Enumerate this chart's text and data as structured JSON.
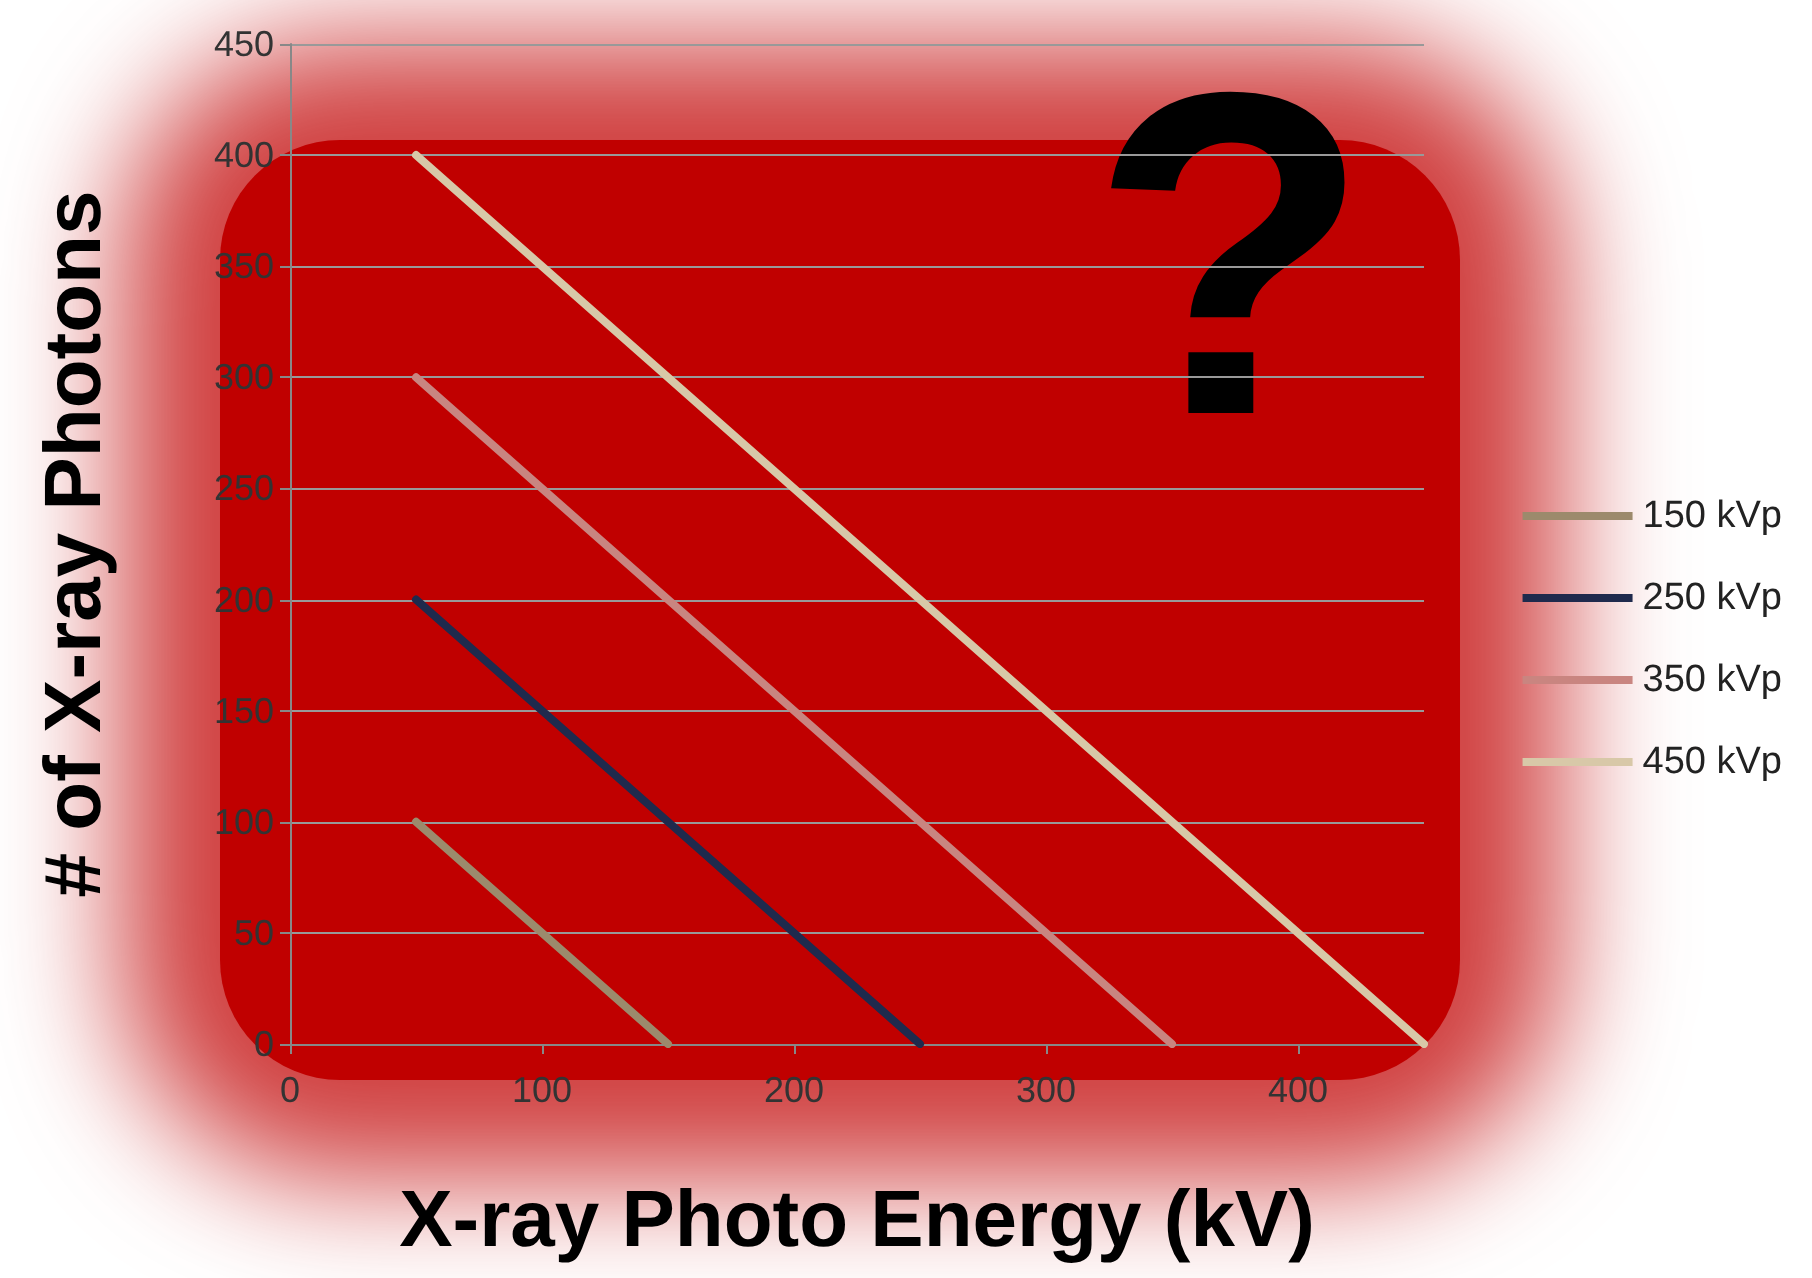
{
  "chart_data": {
    "type": "line",
    "xlabel": "X-ray Photo Energy (kV)",
    "ylabel": "# of X-ray Photons",
    "annotations": [
      "?"
    ],
    "xlim": [
      0,
      450
    ],
    "xticks": [
      0,
      100,
      200,
      300,
      400
    ],
    "ylim": [
      0,
      450
    ],
    "yticks": [
      0,
      50,
      100,
      150,
      200,
      250,
      300,
      350,
      400,
      450
    ],
    "grid": "y",
    "legend": "right",
    "marker": "none",
    "line_style": "solid",
    "series": [
      {
        "name": "150 kVp",
        "color": "#9c8a6c",
        "x": [
          50,
          150
        ],
        "values": [
          100,
          0
        ]
      },
      {
        "name": "250 kVp",
        "color": "#1f2a4d",
        "x": [
          50,
          250
        ],
        "values": [
          200,
          0
        ]
      },
      {
        "name": "350 kVp",
        "color": "#c98580",
        "x": [
          50,
          350
        ],
        "values": [
          300,
          0
        ]
      },
      {
        "name": "450 kVp",
        "color": "#d8c8a8",
        "x": [
          50,
          450
        ],
        "values": [
          400,
          0
        ]
      }
    ]
  }
}
